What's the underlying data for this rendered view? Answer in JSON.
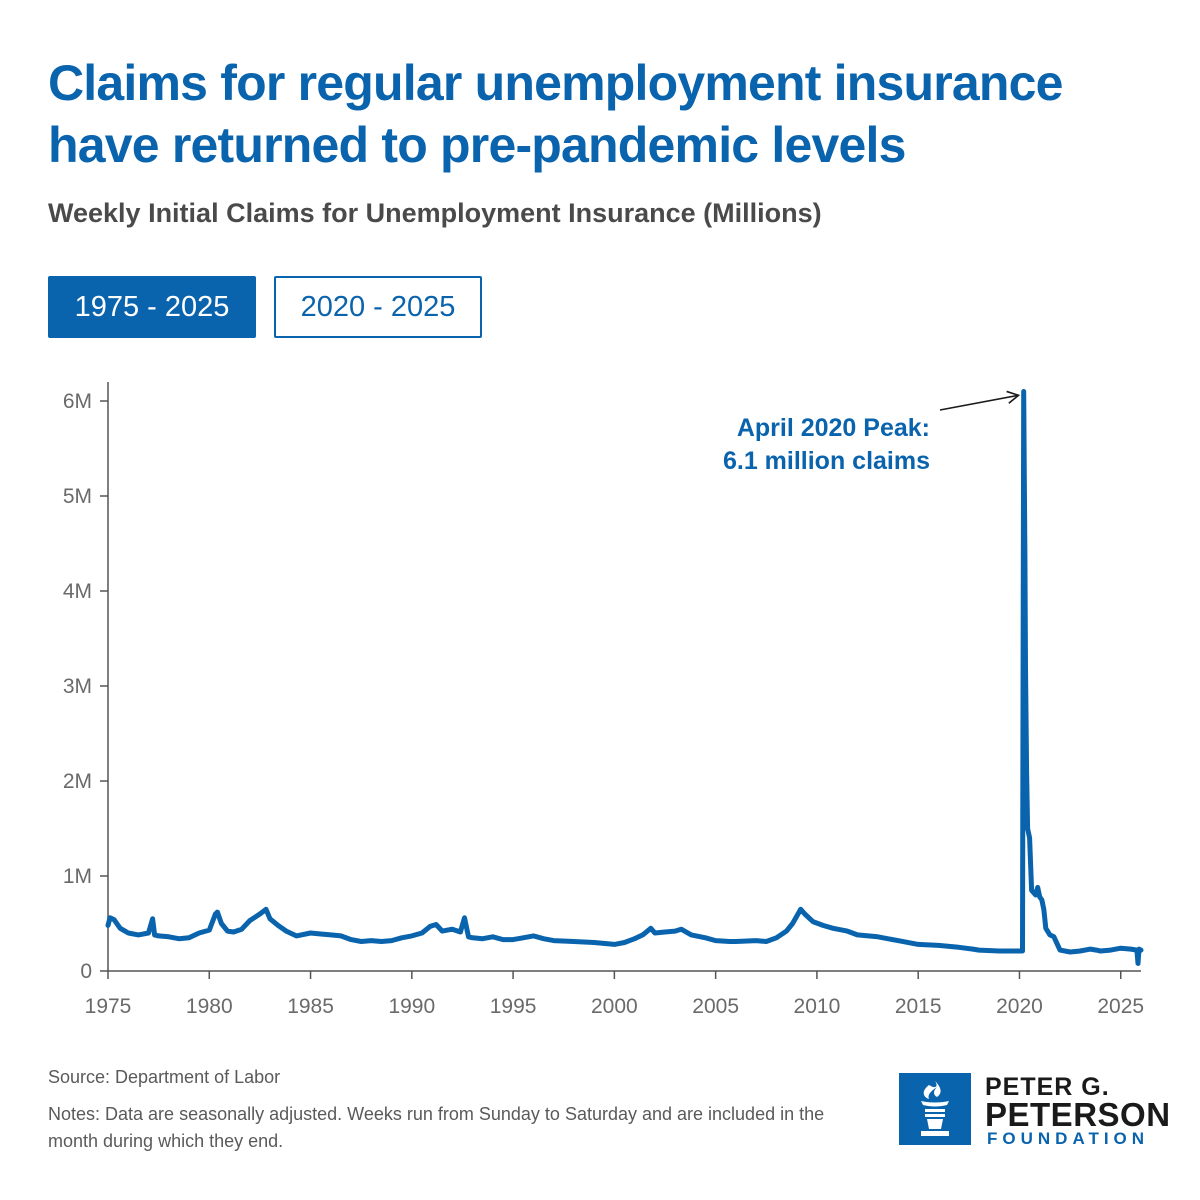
{
  "header": {
    "title": "Claims for regular unemployment insurance have returned to pre-pandemic levels",
    "subtitle": "Weekly Initial Claims for Unemployment Insurance (Millions)"
  },
  "tabs": [
    {
      "label": "1975 - 2025",
      "active": true
    },
    {
      "label": "2020 - 2025",
      "active": false
    }
  ],
  "chart_data": {
    "type": "line",
    "title": "Weekly Initial Claims for Unemployment Insurance (Millions)",
    "xlabel": "",
    "ylabel": "",
    "xlim": [
      1975,
      2026
    ],
    "ylim": [
      0,
      6.2
    ],
    "x_ticks": [
      1975,
      1980,
      1985,
      1990,
      1995,
      2000,
      2005,
      2010,
      2015,
      2020,
      2025
    ],
    "x_tick_labels": [
      "1975",
      "1980",
      "1985",
      "1990",
      "1995",
      "2000",
      "2005",
      "2010",
      "2015",
      "2020",
      "2025"
    ],
    "y_ticks": [
      0,
      1,
      2,
      3,
      4,
      5,
      6
    ],
    "y_tick_labels": [
      "0",
      "1M",
      "2M",
      "3M",
      "4M",
      "5M",
      "6M"
    ],
    "grid": false,
    "color": "#0a63ad",
    "series": [
      {
        "name": "Weekly initial claims (millions)",
        "x": [
          1975.0,
          1975.1,
          1975.3,
          1975.6,
          1976.0,
          1976.5,
          1977.0,
          1977.2,
          1977.3,
          1977.5,
          1978.0,
          1978.5,
          1979.0,
          1979.5,
          1980.0,
          1980.3,
          1980.4,
          1980.6,
          1980.9,
          1981.2,
          1981.6,
          1982.0,
          1982.5,
          1982.8,
          1983.0,
          1983.4,
          1983.8,
          1984.3,
          1985.0,
          1985.5,
          1986.0,
          1986.5,
          1987.0,
          1987.5,
          1988.0,
          1988.5,
          1989.0,
          1989.5,
          1990.0,
          1990.5,
          1990.9,
          1991.2,
          1991.5,
          1992.0,
          1992.4,
          1992.6,
          1992.8,
          1993.0,
          1993.5,
          1994.0,
          1994.5,
          1995.0,
          1995.5,
          1996.0,
          1996.5,
          1997.0,
          1998.0,
          1999.0,
          2000.0,
          2000.5,
          2001.0,
          2001.4,
          2001.8,
          2002.0,
          2002.5,
          2003.0,
          2003.3,
          2003.8,
          2004.5,
          2005.0,
          2005.7,
          2006.0,
          2007.0,
          2007.5,
          2008.0,
          2008.5,
          2008.8,
          2009.2,
          2009.4,
          2009.8,
          2010.3,
          2010.8,
          2011.5,
          2012.0,
          2013.0,
          2014.0,
          2015.0,
          2016.0,
          2017.0,
          2017.7,
          2018.0,
          2019.0,
          2020.0,
          2020.15,
          2020.18,
          2020.21,
          2020.24,
          2020.27,
          2020.3,
          2020.35,
          2020.4,
          2020.5,
          2020.6,
          2020.8,
          2020.9,
          2021.0,
          2021.1,
          2021.2,
          2021.3,
          2021.5,
          2021.7,
          2022.0,
          2022.5,
          2023.0,
          2023.5,
          2023.8,
          2024.0,
          2024.5,
          2025.0,
          2025.5,
          2025.8,
          2025.85,
          2025.9,
          2026.0
        ],
        "values": [
          0.48,
          0.56,
          0.54,
          0.45,
          0.4,
          0.38,
          0.4,
          0.55,
          0.38,
          0.37,
          0.36,
          0.34,
          0.35,
          0.4,
          0.43,
          0.6,
          0.62,
          0.5,
          0.42,
          0.41,
          0.44,
          0.53,
          0.6,
          0.65,
          0.55,
          0.48,
          0.42,
          0.37,
          0.4,
          0.39,
          0.38,
          0.37,
          0.33,
          0.31,
          0.32,
          0.31,
          0.32,
          0.35,
          0.37,
          0.4,
          0.47,
          0.49,
          0.42,
          0.44,
          0.41,
          0.56,
          0.36,
          0.35,
          0.34,
          0.36,
          0.33,
          0.33,
          0.35,
          0.37,
          0.34,
          0.32,
          0.31,
          0.3,
          0.28,
          0.3,
          0.34,
          0.38,
          0.45,
          0.4,
          0.41,
          0.42,
          0.44,
          0.38,
          0.35,
          0.32,
          0.31,
          0.31,
          0.32,
          0.31,
          0.35,
          0.42,
          0.5,
          0.65,
          0.6,
          0.52,
          0.48,
          0.45,
          0.42,
          0.38,
          0.36,
          0.32,
          0.28,
          0.27,
          0.25,
          0.23,
          0.22,
          0.21,
          0.21,
          0.21,
          3.3,
          6.1,
          5.2,
          4.4,
          3.2,
          2.1,
          1.5,
          1.4,
          0.85,
          0.8,
          0.88,
          0.78,
          0.75,
          0.65,
          0.45,
          0.38,
          0.36,
          0.22,
          0.2,
          0.21,
          0.23,
          0.22,
          0.21,
          0.22,
          0.24,
          0.23,
          0.22,
          0.08,
          0.23,
          0.22
        ]
      }
    ],
    "annotation": {
      "lines": [
        "April 2020 Peak:",
        "6.1 million claims"
      ],
      "x": 2020.3,
      "y": 6.1
    }
  },
  "footer": {
    "source": "Source: Department of Labor",
    "notes": "Notes: Data are seasonally adjusted. Weeks run from Sunday to Saturday and are included in the month during which they end."
  },
  "logo": {
    "line1": "PETER G.",
    "line2": "PETERSON",
    "line3": "FOUNDATION"
  }
}
